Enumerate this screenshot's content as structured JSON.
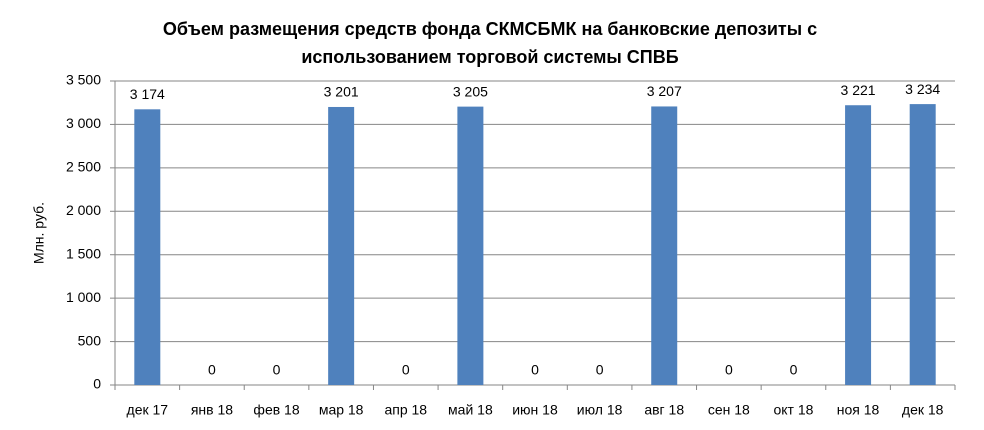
{
  "chart_data": {
    "type": "bar",
    "title": [
      "Объем размещения средств фонда СКМСБМК на банковские депозиты с",
      "использованием торговой системы СПВБ"
    ],
    "y_label": "Млн. руб.",
    "categories": [
      "дек 17",
      "янв 18",
      "фев 18",
      "мар 18",
      "апр 18",
      "май 18",
      "июн 18",
      "июл 18",
      "авг 18",
      "сен 18",
      "окт 18",
      "ноя 18",
      "дек 18"
    ],
    "values": [
      3174,
      0,
      0,
      3201,
      0,
      3205,
      0,
      0,
      3207,
      0,
      0,
      3221,
      3234
    ],
    "value_labels": [
      "3 174",
      "0",
      "0",
      "3 201",
      "0",
      "3 205",
      "0",
      "0",
      "3 207",
      "0",
      "0",
      "3 221",
      "3 234"
    ],
    "color": "#4f81bd",
    "ylim": [
      0,
      3500
    ],
    "yticks": [
      0,
      500,
      {
        "value": 1000,
        "label": "1 000"
      },
      {
        "value": 1500,
        "label": "1 500"
      },
      {
        "value": 2000,
        "label": "2 000"
      },
      {
        "value": 2500,
        "label": "2 500"
      },
      {
        "value": 3000,
        "label": "3 000"
      },
      {
        "value": 3500,
        "label": "3 500"
      }
    ],
    "grid": true
  }
}
